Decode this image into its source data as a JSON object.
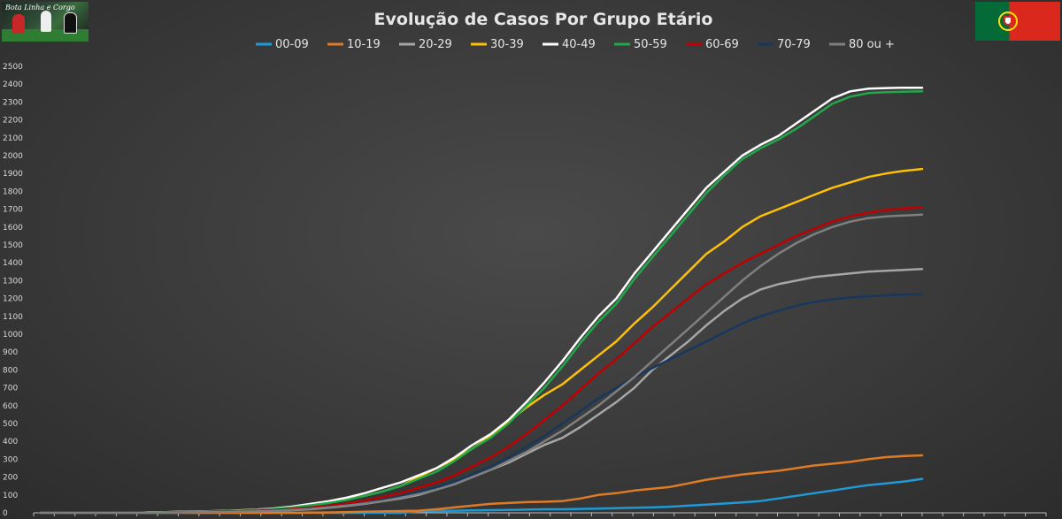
{
  "logo_text": "Bota Linha e Corgo",
  "chart_data": {
    "type": "line",
    "title": "Evolução de Casos Por Grupo Etário",
    "xlabel": "",
    "ylabel": "",
    "ylim": [
      0,
      2500
    ],
    "yticks": [
      0,
      100,
      200,
      300,
      400,
      500,
      600,
      700,
      800,
      900,
      1000,
      1100,
      1200,
      1300,
      1400,
      1500,
      1600,
      1700,
      1800,
      1900,
      2000,
      2100,
      2200,
      2300,
      2400,
      2500
    ],
    "grid": false,
    "legend": "top",
    "colors": {
      "background": "#3a3a3a",
      "axis": "#bdbdbd",
      "title": "#e6e6e6"
    },
    "x": [
      1,
      2,
      3,
      4,
      5,
      6,
      7,
      8,
      9,
      10,
      11,
      12,
      13,
      14,
      15,
      16,
      17,
      18,
      19,
      20,
      21,
      22,
      23,
      24,
      25,
      26,
      27,
      28,
      29,
      30,
      31,
      32,
      33,
      34,
      35,
      36,
      37,
      38,
      39,
      40,
      41,
      42,
      43,
      44,
      45,
      46,
      47,
      48,
      49,
      50
    ],
    "series": [
      {
        "name": "00-09",
        "color": "#1e9bd7",
        "values": [
          0,
          0,
          0,
          0,
          0,
          0,
          0,
          0,
          0,
          0,
          0,
          0,
          0,
          0,
          0,
          0,
          0,
          0,
          0,
          0,
          0,
          8,
          10,
          12,
          14,
          15,
          16,
          18,
          20,
          20,
          22,
          24,
          26,
          28,
          30,
          34,
          40,
          46,
          52,
          58,
          66,
          80,
          95,
          110,
          125,
          140,
          155,
          165,
          175,
          190
        ]
      },
      {
        "name": "10-19",
        "color": "#e07b25",
        "values": [
          0,
          0,
          0,
          0,
          0,
          0,
          0,
          0,
          0,
          0,
          0,
          0,
          0,
          0,
          0,
          1,
          2,
          4,
          6,
          8,
          10,
          12,
          20,
          30,
          40,
          50,
          55,
          60,
          62,
          66,
          80,
          100,
          110,
          125,
          135,
          145,
          165,
          185,
          200,
          215,
          225,
          235,
          250,
          265,
          275,
          285,
          300,
          312,
          318,
          322
        ]
      },
      {
        "name": "20-29",
        "color": "#a6a6a6",
        "values": [
          0,
          0,
          0,
          0,
          0,
          0,
          2,
          3,
          4,
          5,
          6,
          8,
          10,
          12,
          15,
          20,
          28,
          38,
          50,
          65,
          80,
          100,
          130,
          160,
          200,
          240,
          280,
          330,
          380,
          420,
          480,
          550,
          620,
          700,
          800,
          880,
          960,
          1050,
          1130,
          1200,
          1250,
          1280,
          1300,
          1320,
          1330,
          1340,
          1350,
          1355,
          1360,
          1365
        ]
      },
      {
        "name": "30-39",
        "color": "#ffc000",
        "values": [
          0,
          0,
          0,
          0,
          0,
          0,
          2,
          4,
          6,
          8,
          10,
          12,
          15,
          20,
          30,
          45,
          60,
          75,
          95,
          120,
          150,
          200,
          250,
          300,
          360,
          430,
          510,
          590,
          660,
          720,
          800,
          880,
          960,
          1060,
          1150,
          1250,
          1350,
          1450,
          1520,
          1600,
          1660,
          1700,
          1740,
          1780,
          1820,
          1850,
          1880,
          1900,
          1915,
          1925
        ]
      },
      {
        "name": "40-49",
        "color": "#ffffff",
        "values": [
          0,
          0,
          0,
          0,
          0,
          0,
          2,
          4,
          6,
          8,
          10,
          14,
          18,
          25,
          35,
          50,
          65,
          85,
          110,
          140,
          170,
          210,
          250,
          310,
          380,
          440,
          520,
          620,
          730,
          850,
          980,
          1100,
          1200,
          1340,
          1460,
          1580,
          1700,
          1820,
          1910,
          2000,
          2060,
          2110,
          2180,
          2250,
          2320,
          2360,
          2375,
          2378,
          2380,
          2380
        ]
      },
      {
        "name": "50-59",
        "color": "#21a849",
        "values": [
          0,
          0,
          0,
          0,
          0,
          0,
          2,
          3,
          5,
          7,
          9,
          12,
          16,
          22,
          30,
          42,
          55,
          72,
          95,
          120,
          150,
          190,
          230,
          290,
          360,
          420,
          500,
          600,
          700,
          820,
          950,
          1070,
          1170,
          1310,
          1430,
          1550,
          1670,
          1790,
          1890,
          1980,
          2040,
          2090,
          2150,
          2220,
          2290,
          2330,
          2350,
          2355,
          2358,
          2360
        ]
      },
      {
        "name": "60-69",
        "color": "#c00000",
        "values": [
          0,
          0,
          0,
          0,
          0,
          0,
          1,
          2,
          4,
          6,
          8,
          10,
          12,
          16,
          22,
          30,
          40,
          52,
          68,
          88,
          110,
          140,
          170,
          210,
          260,
          310,
          370,
          440,
          520,
          600,
          690,
          780,
          860,
          950,
          1040,
          1120,
          1200,
          1280,
          1340,
          1400,
          1450,
          1500,
          1550,
          1590,
          1630,
          1660,
          1680,
          1695,
          1705,
          1710
        ]
      },
      {
        "name": "70-79",
        "color": "#17375e",
        "values": [
          0,
          0,
          0,
          0,
          0,
          0,
          1,
          2,
          3,
          4,
          6,
          8,
          10,
          13,
          18,
          24,
          32,
          42,
          55,
          72,
          92,
          115,
          140,
          175,
          215,
          260,
          310,
          370,
          430,
          500,
          570,
          640,
          700,
          760,
          810,
          860,
          910,
          960,
          1010,
          1060,
          1100,
          1130,
          1160,
          1180,
          1195,
          1205,
          1212,
          1218,
          1222,
          1225
        ]
      },
      {
        "name": "80 ou +",
        "color": "#7f7f7f",
        "values": [
          0,
          0,
          0,
          0,
          0,
          0,
          1,
          2,
          3,
          4,
          5,
          7,
          9,
          12,
          16,
          22,
          30,
          40,
          52,
          66,
          84,
          105,
          130,
          160,
          200,
          240,
          290,
          340,
          400,
          460,
          530,
          600,
          680,
          760,
          850,
          940,
          1030,
          1120,
          1210,
          1300,
          1380,
          1450,
          1510,
          1560,
          1600,
          1630,
          1650,
          1660,
          1665,
          1670
        ]
      }
    ]
  }
}
